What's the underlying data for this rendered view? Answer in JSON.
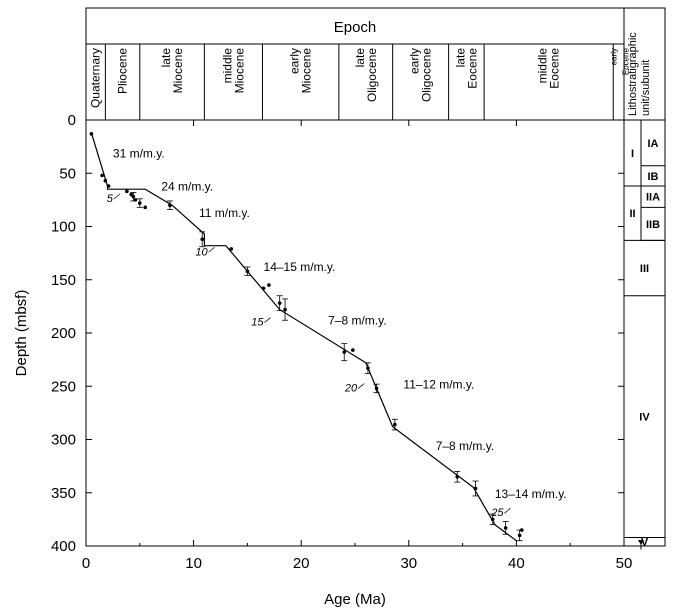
{
  "chart_data": {
    "type": "line",
    "title": "",
    "xlabel": "Age (Ma)",
    "ylabel": "Depth (mbsf)",
    "xlim": [
      0,
      50
    ],
    "ylim": [
      400,
      0
    ],
    "y_inverted": true,
    "x_ticks": [
      "0",
      "10",
      "20",
      "30",
      "40",
      "50"
    ],
    "y_ticks": [
      "0",
      "50",
      "100",
      "150",
      "200",
      "250",
      "300",
      "350",
      "400"
    ],
    "epoch_header": "Epoch",
    "epochs": [
      {
        "name": "Quaternary",
        "start": 0,
        "end": 1.8
      },
      {
        "name": "Pliocene",
        "start": 1.8,
        "end": 5.0
      },
      {
        "name": "late Miocene",
        "start": 5.0,
        "end": 11.0
      },
      {
        "name": "middle Miocene",
        "start": 11.0,
        "end": 16.4
      },
      {
        "name": "early Miocene",
        "start": 16.4,
        "end": 23.5
      },
      {
        "name": "late Oligocene",
        "start": 23.5,
        "end": 28.5
      },
      {
        "name": "early Oligocene",
        "start": 28.5,
        "end": 33.7
      },
      {
        "name": "late Eocene",
        "start": 33.7,
        "end": 37.0
      },
      {
        "name": "middle Eocene",
        "start": 37.0,
        "end": 49.0
      },
      {
        "name": "early Eocene",
        "start": 49.0,
        "end": 50.0
      }
    ],
    "litho_header": "Lithostratigraphic unit/subunit",
    "litho_units": [
      {
        "unit": "I",
        "top": 0,
        "bottom": 62
      },
      {
        "unit": "II",
        "top": 62,
        "bottom": 113
      },
      {
        "unit": "III",
        "top": 113,
        "bottom": 165
      },
      {
        "unit": "IV",
        "top": 165,
        "bottom": 392
      },
      {
        "unit": "V",
        "top": 392,
        "bottom": 400
      }
    ],
    "litho_subunits": [
      {
        "unit": "IA",
        "top": 0,
        "bottom": 43
      },
      {
        "unit": "IB",
        "top": 43,
        "bottom": 62
      },
      {
        "unit": "IIA",
        "top": 62,
        "bottom": 82
      },
      {
        "unit": "IIB",
        "top": 82,
        "bottom": 113
      }
    ],
    "series": [
      {
        "type": "line",
        "x": [
          0.5,
          2.0,
          2.0,
          5.5,
          8.0,
          8.0,
          11.0,
          11.0,
          13.0,
          18.0,
          26.0,
          26.0,
          28.5,
          36.0,
          38.0,
          40.0
        ],
        "y": [
          12,
          62,
          65,
          65,
          80,
          80,
          107,
          118,
          118,
          178,
          228,
          228,
          288,
          345,
          380,
          395
        ]
      },
      {
        "type": "scatter",
        "x": [
          0.5,
          1.5,
          1.8,
          2.1,
          3.8,
          4.2,
          4.4,
          4.6,
          5.0,
          5.5,
          7.8,
          10.8,
          13.5,
          15.0,
          16.5,
          17.0,
          18.0,
          18.5,
          24.0,
          24.8,
          26.2,
          27.0,
          28.7,
          34.5,
          36.2,
          37.8,
          39.0,
          40.3,
          40.5
        ],
        "y": [
          13,
          52,
          57,
          62,
          67,
          70,
          72,
          75,
          78,
          82,
          80,
          112,
          121,
          142,
          158,
          155,
          172,
          178,
          218,
          216,
          233,
          252,
          286,
          335,
          346,
          375,
          383,
          390,
          385
        ],
        "error": [
          0,
          0,
          0,
          0,
          0,
          0,
          4,
          0,
          4,
          0,
          4,
          7,
          0,
          4,
          0,
          0,
          7,
          10,
          8,
          0,
          5,
          4,
          5,
          5,
          7,
          5,
          6,
          5,
          0
        ]
      }
    ],
    "rate_labels": [
      {
        "text": "31 m/m.y.",
        "x": 2.5,
        "y": 35
      },
      {
        "text": "24 m/m.y.",
        "x": 7.0,
        "y": 66
      },
      {
        "text": "11 m/m.y.",
        "x": 10.5,
        "y": 91
      },
      {
        "text": "14–15 m/m.y.",
        "x": 16.5,
        "y": 142
      },
      {
        "text": "7–8 m/m.y.",
        "x": 22.5,
        "y": 192
      },
      {
        "text": "11–12 m/m.y.",
        "x": 29.5,
        "y": 252
      },
      {
        "text": "7–8 m/m.y.",
        "x": 32.5,
        "y": 310
      },
      {
        "text": "13–14 m/m.y.",
        "x": 38.0,
        "y": 355
      }
    ],
    "age_markers": [
      {
        "text": "5",
        "x": 2.5,
        "y": 77
      },
      {
        "text": "10",
        "x": 11.3,
        "y": 127
      },
      {
        "text": "15",
        "x": 16.5,
        "y": 193
      },
      {
        "text": "20",
        "x": 25.2,
        "y": 255
      },
      {
        "text": "25",
        "x": 38.8,
        "y": 372
      }
    ],
    "grid": false
  }
}
